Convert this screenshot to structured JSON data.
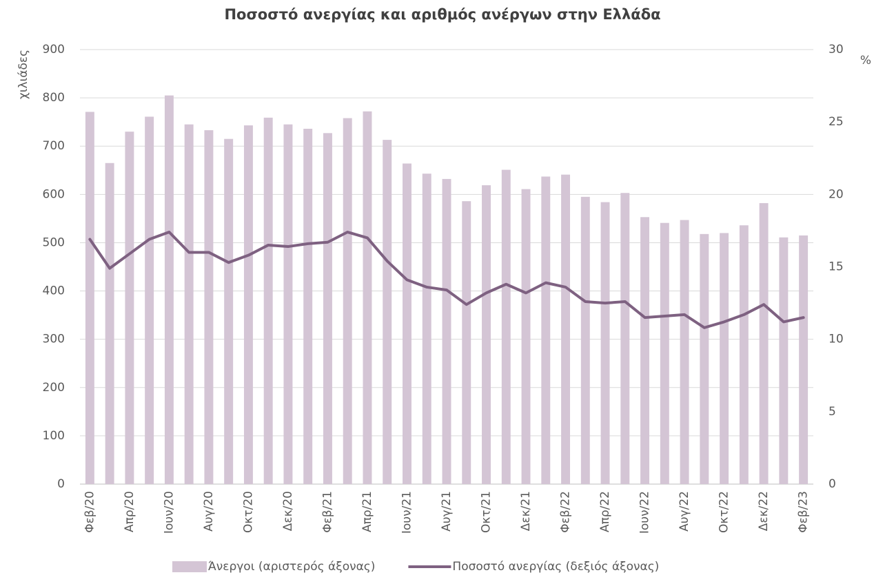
{
  "chart_data": {
    "type": "bar-line",
    "title": "Ποσοστό ανεργίας και αριθμός ανέργων στην Ελλάδα",
    "ylabel": "χιλιάδες",
    "y2label": "%",
    "categories": [
      "Φεβ/20",
      null,
      "Απρ/20",
      null,
      "Ιουν/20",
      null,
      "Αυγ/20",
      null,
      "Οκτ/20",
      null,
      "Δεκ/20",
      null,
      "Φεβ/21",
      null,
      "Απρ/21",
      null,
      "Ιουν/21",
      null,
      "Αυγ/21",
      null,
      "Οκτ/21",
      null,
      "Δεκ/21",
      null,
      "Φεβ/22",
      null,
      "Απρ/22",
      null,
      "Ιουν/22",
      null,
      "Αυγ/22",
      null,
      "Οκτ/22",
      null,
      "Δεκ/22",
      null,
      "Φεβ/23"
    ],
    "series": [
      {
        "name": "Άνεργοι (αριστερός άξονας)",
        "type": "bar",
        "color": "#d4c5d5",
        "axis": "y",
        "values": [
          771,
          665,
          730,
          761,
          805,
          745,
          733,
          715,
          743,
          759,
          745,
          736,
          727,
          758,
          772,
          713,
          664,
          643,
          632,
          586,
          619,
          651,
          611,
          637,
          641,
          595,
          584,
          603,
          553,
          541,
          547,
          518,
          520,
          536,
          582,
          511,
          515
        ]
      },
      {
        "name": "Ποσοστό ανεργίας (δεξιός άξονας)",
        "type": "line",
        "color": "#7e6181",
        "axis": "y2",
        "values": [
          16.9,
          14.9,
          15.9,
          16.9,
          17.4,
          16.0,
          16.0,
          15.3,
          15.8,
          16.5,
          16.4,
          16.6,
          16.7,
          17.4,
          17.0,
          15.4,
          14.1,
          13.6,
          13.4,
          12.4,
          13.2,
          13.8,
          13.2,
          13.9,
          13.6,
          12.6,
          12.5,
          12.6,
          11.5,
          11.6,
          11.7,
          10.8,
          11.2,
          11.7,
          12.4,
          11.2,
          11.5
        ]
      }
    ],
    "ylim": [
      0,
      900
    ],
    "yticks": [
      0,
      100,
      200,
      300,
      400,
      500,
      600,
      700,
      800,
      900
    ],
    "y2lim": [
      0,
      30
    ],
    "y2ticks": [
      0,
      5,
      10,
      15,
      20,
      25,
      30
    ],
    "grid": true,
    "legend": "bottom"
  }
}
